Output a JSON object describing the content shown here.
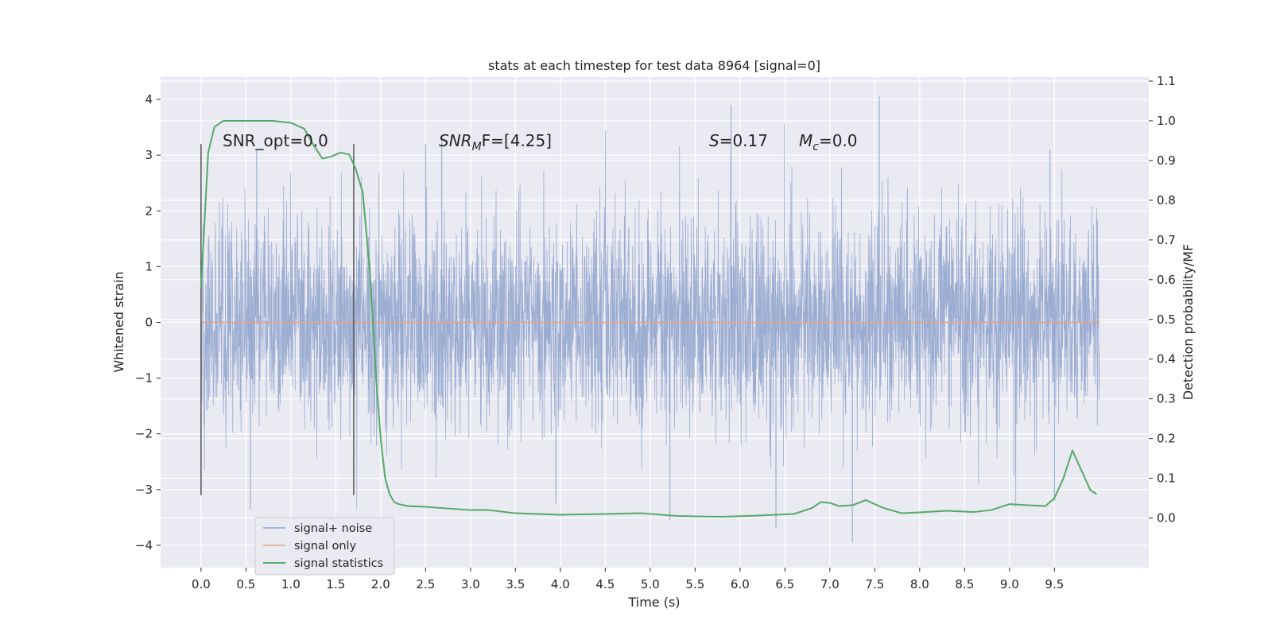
{
  "chart_data": {
    "type": "line",
    "title": "stats at each timestep for test data 8964 [signal=0]",
    "xlabel": "Time (s)",
    "ylabel": "Whitened strain",
    "ylabel_right": "Detection probability/MF",
    "xlim": [
      -0.45,
      10.55
    ],
    "ylim": [
      -4.4,
      4.4
    ],
    "ylim_right": [
      -0.125,
      1.11
    ],
    "x_ticks": [
      "0.0",
      "0.5",
      "1.0",
      "1.5",
      "2.0",
      "2.5",
      "3.0",
      "3.5",
      "4.0",
      "4.5",
      "5.0",
      "5.5",
      "6.0",
      "6.5",
      "7.0",
      "7.5",
      "8.0",
      "8.5",
      "9.0",
      "9.5"
    ],
    "y_ticks": [
      "4",
      "3",
      "2",
      "1",
      "0",
      "−1",
      "−2",
      "−3",
      "−4"
    ],
    "y_right_ticks": [
      "1.1",
      "1.0",
      "0.9",
      "0.8",
      "0.7",
      "0.6",
      "0.5",
      "0.4",
      "0.3",
      "0.2",
      "0.1",
      "0.0"
    ],
    "grid": true,
    "legend_placement": "lower-left",
    "annotations": {
      "snr_opt": "SNR_opt=0.0",
      "snr_mf_base": "SNR",
      "snr_mf_sub": "M",
      "snr_mf_rest": "F=[4.25]",
      "s_label": "S",
      "s_value": "=0.17",
      "mc_label": "M",
      "mc_sub": "c",
      "mc_value": "=0.0"
    },
    "vertical_markers": [
      0.0,
      1.7
    ],
    "noise_envelope": {
      "x_start": 0.0,
      "x_end": 10.0,
      "typical_amplitude": 1.3
    },
    "series": [
      {
        "name": "signal+ noise",
        "color": "#8ea2cc",
        "description_values": "whitened noise, amplitude mostly within [-3, 3]"
      },
      {
        "name": "signal only",
        "color": "#e1a58a",
        "x": [
          0.0,
          10.0
        ],
        "y": [
          0.0,
          0.0
        ]
      },
      {
        "name": "signal statistics",
        "color": "#55a868",
        "axis": "right",
        "x": [
          0.0,
          0.08,
          0.15,
          0.25,
          0.4,
          0.6,
          0.8,
          1.0,
          1.15,
          1.25,
          1.35,
          1.45,
          1.55,
          1.65,
          1.72,
          1.8,
          1.88,
          1.95,
          2.0,
          2.05,
          2.1,
          2.15,
          2.2,
          2.3,
          2.5,
          3.0,
          3.2,
          3.5,
          4.0,
          4.5,
          4.9,
          5.3,
          5.8,
          6.2,
          6.6,
          6.8,
          6.9,
          7.0,
          7.1,
          7.25,
          7.4,
          7.6,
          7.8,
          8.0,
          8.3,
          8.6,
          8.8,
          9.0,
          9.2,
          9.4,
          9.5,
          9.6,
          9.7,
          9.8,
          9.9,
          9.97
        ],
        "y": [
          0.58,
          0.92,
          0.985,
          1.0,
          1.0,
          1.0,
          1.0,
          0.995,
          0.98,
          0.94,
          0.905,
          0.91,
          0.92,
          0.915,
          0.88,
          0.82,
          0.62,
          0.35,
          0.2,
          0.1,
          0.06,
          0.04,
          0.035,
          0.03,
          0.028,
          0.02,
          0.02,
          0.012,
          0.008,
          0.01,
          0.012,
          0.005,
          0.003,
          0.006,
          0.01,
          0.025,
          0.04,
          0.038,
          0.03,
          0.032,
          0.045,
          0.025,
          0.012,
          0.014,
          0.018,
          0.015,
          0.02,
          0.035,
          0.032,
          0.03,
          0.05,
          0.1,
          0.17,
          0.12,
          0.07,
          0.06
        ]
      }
    ]
  }
}
